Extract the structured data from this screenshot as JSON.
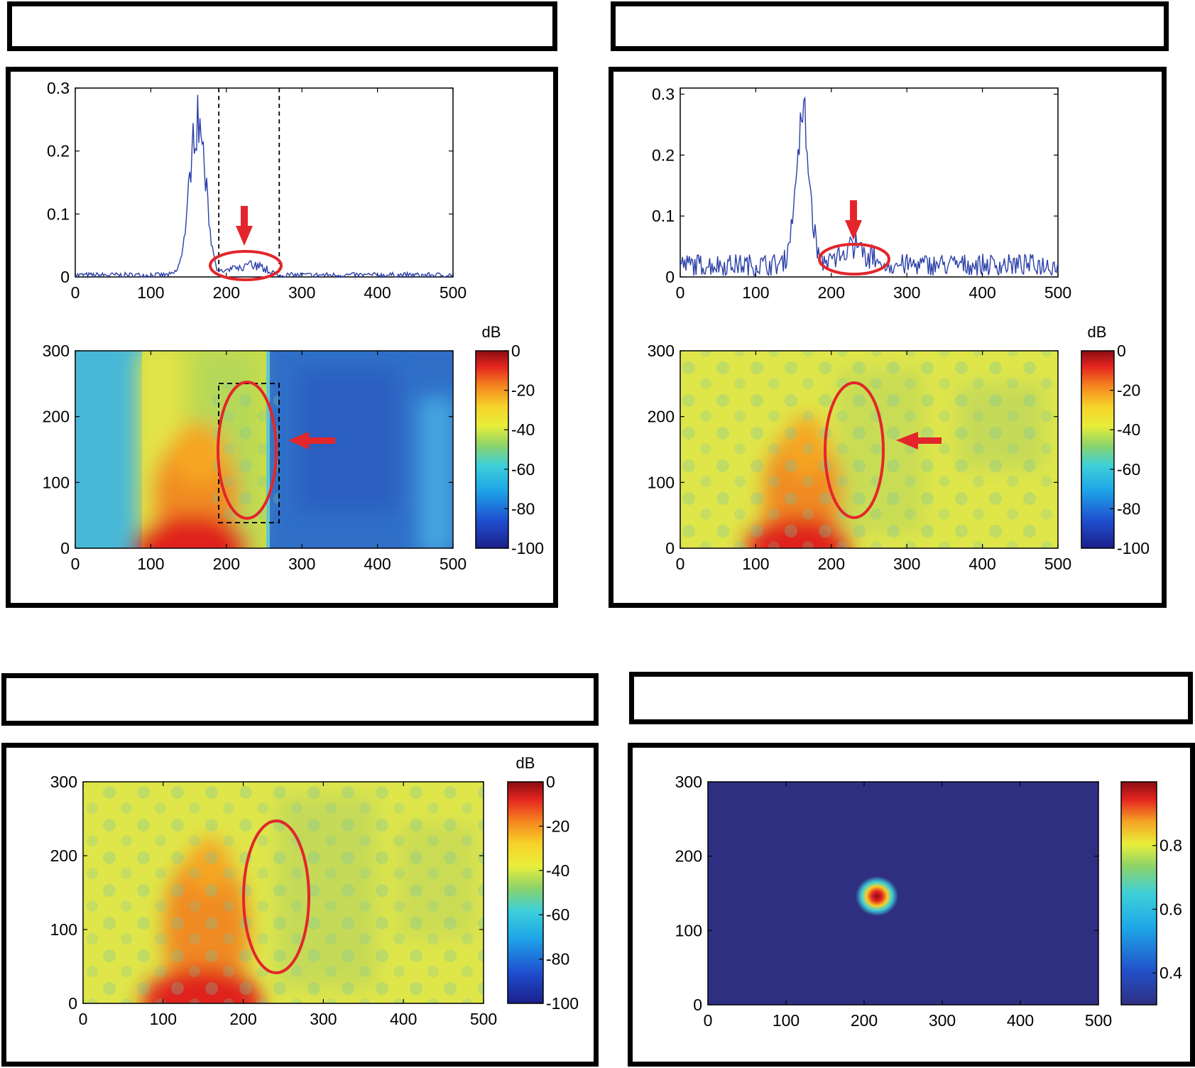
{
  "panels": [
    {
      "id": "tl",
      "header_text": ""
    },
    {
      "id": "tr",
      "header_text": ""
    },
    {
      "id": "bl",
      "header_text": ""
    },
    {
      "id": "br",
      "header_text": ""
    }
  ],
  "colors": {
    "signal_line": "#2b3fa8",
    "annotation": "#e3262b",
    "frame": "#000000"
  },
  "chart_data": [
    {
      "id": "tl-line",
      "type": "line",
      "title": "",
      "x_ticks": [
        0,
        100,
        200,
        300,
        400,
        500
      ],
      "y_ticks": [
        0,
        0.1,
        0.2,
        0.3
      ],
      "xlim": [
        0,
        500
      ],
      "ylim": [
        0,
        0.3
      ],
      "series": [
        {
          "name": "signal",
          "noise": 0.004,
          "baseline": 0.003,
          "peak": {
            "center": 162,
            "amplitude": 0.29,
            "width": 15
          },
          "echo": {
            "start": 190,
            "end": 270,
            "amplitude": 0.02
          }
        }
      ],
      "gate_lines_x": [
        190,
        270
      ],
      "annotation": {
        "type": "ellipse",
        "center_x": 227,
        "center_y": 0.018,
        "arrow": "down"
      }
    },
    {
      "id": "tl-map",
      "type": "heatmap",
      "x_ticks": [
        0,
        100,
        200,
        300,
        400,
        500
      ],
      "y_ticks": [
        0,
        100,
        200,
        300
      ],
      "xlim": [
        0,
        500
      ],
      "ylim": [
        0,
        300
      ],
      "colorbar": {
        "label": "dB",
        "ticks": [
          0,
          -20,
          -40,
          -60,
          -80,
          -100
        ],
        "range": [
          -100,
          0
        ]
      },
      "gate_box": {
        "x": [
          190,
          270
        ],
        "y": [
          40,
          250
        ]
      },
      "annotation": {
        "type": "ellipse",
        "center_x": 229,
        "center_y": 150,
        "arrow": "left"
      }
    },
    {
      "id": "tr-line",
      "type": "line",
      "title": "",
      "x_ticks": [
        0,
        100,
        200,
        300,
        400,
        500
      ],
      "y_ticks": [
        0,
        0.1,
        0.2,
        0.3
      ],
      "xlim": [
        0,
        500
      ],
      "ylim": [
        0,
        0.31
      ],
      "series": [
        {
          "name": "signal",
          "noise": 0.018,
          "baseline": 0.02,
          "peak": {
            "center": 162,
            "amplitude": 0.28,
            "width": 13
          },
          "echo": {
            "start": 190,
            "end": 270,
            "amplitude": 0.03
          }
        }
      ],
      "annotation": {
        "type": "ellipse",
        "center_x": 232,
        "center_y": 0.03,
        "arrow": "down"
      }
    },
    {
      "id": "tr-map",
      "type": "heatmap",
      "x_ticks": [
        0,
        100,
        200,
        300,
        400,
        500
      ],
      "y_ticks": [
        0,
        100,
        200,
        300
      ],
      "xlim": [
        0,
        500
      ],
      "ylim": [
        0,
        300
      ],
      "colorbar": {
        "label": "dB",
        "ticks": [
          0,
          -20,
          -40,
          -60,
          -80,
          -100
        ],
        "range": [
          -100,
          0
        ]
      },
      "annotation": {
        "type": "ellipse",
        "center_x": 229,
        "center_y": 150,
        "arrow": "left"
      }
    },
    {
      "id": "bl-map",
      "type": "heatmap",
      "x_ticks": [
        0,
        100,
        200,
        300,
        400,
        500
      ],
      "y_ticks": [
        0,
        100,
        200,
        300
      ],
      "xlim": [
        0,
        500
      ],
      "ylim": [
        0,
        300
      ],
      "colorbar": {
        "label": "dB",
        "ticks": [
          0,
          -20,
          -40,
          -60,
          -80,
          -100
        ],
        "range": [
          -100,
          0
        ]
      },
      "annotation": {
        "type": "ellipse",
        "center_x": 243,
        "center_y": 142
      }
    },
    {
      "id": "br-map",
      "type": "heatmap",
      "x_ticks": [
        0,
        100,
        200,
        300,
        400,
        500
      ],
      "y_ticks": [
        0,
        100,
        200,
        300
      ],
      "xlim": [
        0,
        500
      ],
      "ylim": [
        0,
        300
      ],
      "colorbar": {
        "label": "",
        "ticks": [
          0.8,
          0.6,
          0.4
        ],
        "range": [
          0.3,
          1.0
        ]
      },
      "hotspot": {
        "x": 218,
        "y": 145,
        "value": 0.98
      }
    }
  ]
}
